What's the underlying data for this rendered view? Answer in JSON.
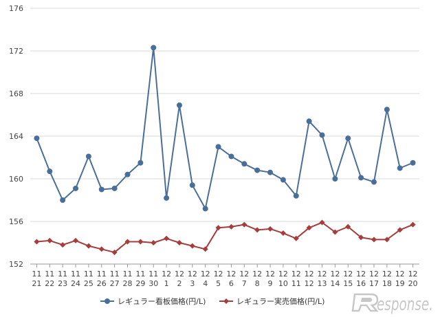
{
  "chart_data": {
    "type": "line",
    "title": "",
    "xlabel": "",
    "ylabel": "",
    "ylim": [
      152,
      176
    ],
    "yticks": [
      152,
      156,
      160,
      164,
      168,
      172,
      176
    ],
    "grid": "horizontal",
    "legend_position": "bottom",
    "categories": [
      [
        "11",
        "21"
      ],
      [
        "11",
        "22"
      ],
      [
        "11",
        "23"
      ],
      [
        "11",
        "24"
      ],
      [
        "11",
        "25"
      ],
      [
        "11",
        "26"
      ],
      [
        "11",
        "27"
      ],
      [
        "11",
        "28"
      ],
      [
        "11",
        "29"
      ],
      [
        "11",
        "30"
      ],
      [
        "12",
        "1"
      ],
      [
        "12",
        "2"
      ],
      [
        "12",
        "3"
      ],
      [
        "12",
        "4"
      ],
      [
        "12",
        "5"
      ],
      [
        "12",
        "6"
      ],
      [
        "12",
        "7"
      ],
      [
        "12",
        "8"
      ],
      [
        "12",
        "9"
      ],
      [
        "12",
        "10"
      ],
      [
        "12",
        "11"
      ],
      [
        "12",
        "12"
      ],
      [
        "12",
        "13"
      ],
      [
        "12",
        "14"
      ],
      [
        "12",
        "15"
      ],
      [
        "12",
        "16"
      ],
      [
        "12",
        "17"
      ],
      [
        "12",
        "18"
      ],
      [
        "12",
        "19"
      ],
      [
        "12",
        "20"
      ]
    ],
    "series": [
      {
        "name": "レギュラー看板価格(円/L)",
        "color": "#4a6e9a",
        "marker": "circle",
        "values": [
          163.8,
          160.7,
          158.0,
          159.1,
          162.1,
          159.0,
          159.1,
          160.4,
          161.5,
          172.3,
          158.2,
          166.9,
          159.4,
          157.2,
          163.0,
          162.1,
          161.4,
          160.8,
          160.6,
          159.9,
          158.4,
          165.4,
          164.1,
          160.0,
          163.8,
          160.1,
          159.7,
          166.5,
          161.0,
          161.5
        ]
      },
      {
        "name": "レギュラー実売価格(円/L)",
        "color": "#a63c3c",
        "marker": "diamond",
        "values": [
          154.1,
          154.2,
          153.8,
          154.2,
          153.7,
          153.4,
          153.1,
          154.1,
          154.1,
          154.0,
          154.4,
          154.0,
          153.7,
          153.4,
          155.4,
          155.5,
          155.7,
          155.2,
          155.3,
          154.9,
          154.4,
          155.4,
          155.9,
          155.0,
          155.5,
          154.5,
          154.3,
          154.3,
          155.2,
          155.7
        ]
      }
    ]
  },
  "watermark": {
    "text": "esponse."
  }
}
